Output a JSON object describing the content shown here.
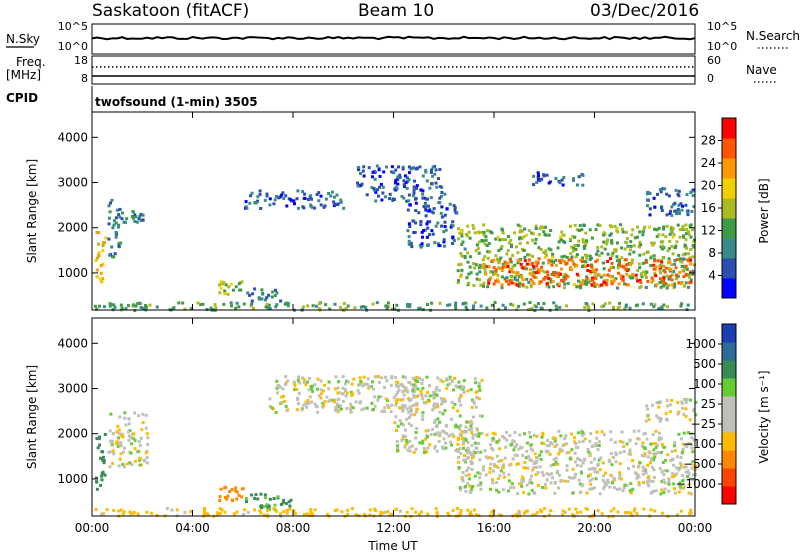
{
  "header": {
    "station": "Saskatoon (fitACF)",
    "beam": "Beam 10",
    "date": "03/Dec/2016"
  },
  "strip": {
    "nsky_label": "N.Sky",
    "nsearch_label": "N.Search",
    "nsky_ticks": [
      "10^5",
      "10^0"
    ],
    "nsearch_ticks": [
      "10^5",
      "10^0"
    ],
    "freq_label": "Freq.",
    "freq_unit": "[MHz]",
    "freq_ticks": [
      "18",
      "8"
    ],
    "nave_label": "Nave",
    "nave_ticks": [
      "60",
      "0"
    ],
    "cpid_label": "CPID",
    "program": "twofsound (1-min) 3505"
  },
  "chart_data": [
    {
      "type": "heatmap",
      "panel": "power",
      "ylabel": "Slant Range [km]",
      "yticks": [
        "4000",
        "3000",
        "2000",
        "1000"
      ],
      "ylim": [
        180,
        4560
      ],
      "xlim": [
        0,
        24
      ],
      "xticks": [
        "00:00",
        "04:00",
        "08:00",
        "12:00",
        "16:00",
        "20:00",
        "00:00"
      ],
      "colorbar": {
        "label": "Power [dB]",
        "ticks": [
          "28",
          "24",
          "20",
          "16",
          "12",
          "8",
          "4"
        ],
        "colors": [
          "#0000ff",
          "#2b4fb0",
          "#3a8a8a",
          "#3e9a45",
          "#aabb22",
          "#f0d000",
          "#ff9900",
          "#ff5500",
          "#ff0000"
        ]
      },
      "regions": [
        {
          "t0": 0.1,
          "t1": 0.5,
          "r0": 800,
          "r1": 2100,
          "value": 20
        },
        {
          "t0": 0.6,
          "t1": 1.1,
          "r0": 1300,
          "r1": 2700,
          "value": 8
        },
        {
          "t0": 1.1,
          "t1": 2.2,
          "r0": 2150,
          "r1": 2400,
          "value": 8
        },
        {
          "t0": 5.0,
          "t1": 6.0,
          "r0": 550,
          "r1": 850,
          "value": 16
        },
        {
          "t0": 6.0,
          "t1": 7.5,
          "r0": 400,
          "r1": 700,
          "value": 8
        },
        {
          "t0": 6.0,
          "t1": 10.0,
          "r0": 2450,
          "r1": 2850,
          "value": 6
        },
        {
          "t0": 10.5,
          "t1": 14.0,
          "r0": 2600,
          "r1": 3400,
          "value": 6
        },
        {
          "t0": 12.5,
          "t1": 14.5,
          "r0": 1600,
          "r1": 2600,
          "value": 6
        },
        {
          "t0": 14.5,
          "t1": 24.0,
          "r0": 700,
          "r1": 2100,
          "value": 14
        },
        {
          "t0": 15.5,
          "t1": 23.8,
          "r0": 750,
          "r1": 1350,
          "value": 26
        },
        {
          "t0": 17.5,
          "t1": 19.5,
          "r0": 2950,
          "r1": 3250,
          "value": 6
        },
        {
          "t0": 22.0,
          "t1": 24.0,
          "r0": 2300,
          "r1": 2900,
          "value": 6
        },
        {
          "t0": 0.0,
          "t1": 24.0,
          "r0": 200,
          "r1": 380,
          "value": 12
        }
      ]
    },
    {
      "type": "heatmap",
      "panel": "velocity",
      "ylabel": "Slant Range [km]",
      "yticks": [
        "4000",
        "3000",
        "2000",
        "1000"
      ],
      "ylim": [
        180,
        4560
      ],
      "xlim": [
        0,
        24
      ],
      "xticks": [
        "00:00",
        "04:00",
        "08:00",
        "12:00",
        "16:00",
        "20:00",
        "00:00"
      ],
      "xlabel": "Time UT",
      "colorbar": {
        "label": "Velocity [m s⁻¹]",
        "ticks": [
          "1000",
          "500",
          "100",
          "25",
          "−25",
          "−100",
          "−500",
          "−1000"
        ],
        "colors": [
          "#1a3fb0",
          "#2e6a9a",
          "#3a8a55",
          "#66cc33",
          "#c0c0b8",
          "#c0c0b8",
          "#ffbb00",
          "#ff8800",
          "#ff4400",
          "#ff0000"
        ]
      },
      "regions": [
        {
          "t0": 0.1,
          "t1": 0.5,
          "r0": 800,
          "r1": 2100,
          "value": 150
        },
        {
          "t0": 0.6,
          "t1": 2.2,
          "r0": 1300,
          "r1": 2500,
          "value": 0
        },
        {
          "t0": 5.0,
          "t1": 6.0,
          "r0": 550,
          "r1": 850,
          "value": -300
        },
        {
          "t0": 6.0,
          "t1": 8.0,
          "r0": 350,
          "r1": 700,
          "value": 120
        },
        {
          "t0": 7.0,
          "t1": 13.0,
          "r0": 2500,
          "r1": 3300,
          "value": 0
        },
        {
          "t0": 12.0,
          "t1": 15.5,
          "r0": 1600,
          "r1": 3300,
          "value": 0
        },
        {
          "t0": 14.5,
          "t1": 24.0,
          "r0": 700,
          "r1": 2100,
          "value": 0
        },
        {
          "t0": 22.0,
          "t1": 24.0,
          "r0": 2300,
          "r1": 2800,
          "value": 0
        },
        {
          "t0": 0.0,
          "t1": 24.0,
          "r0": 200,
          "r1": 380,
          "value": -60
        }
      ]
    }
  ]
}
